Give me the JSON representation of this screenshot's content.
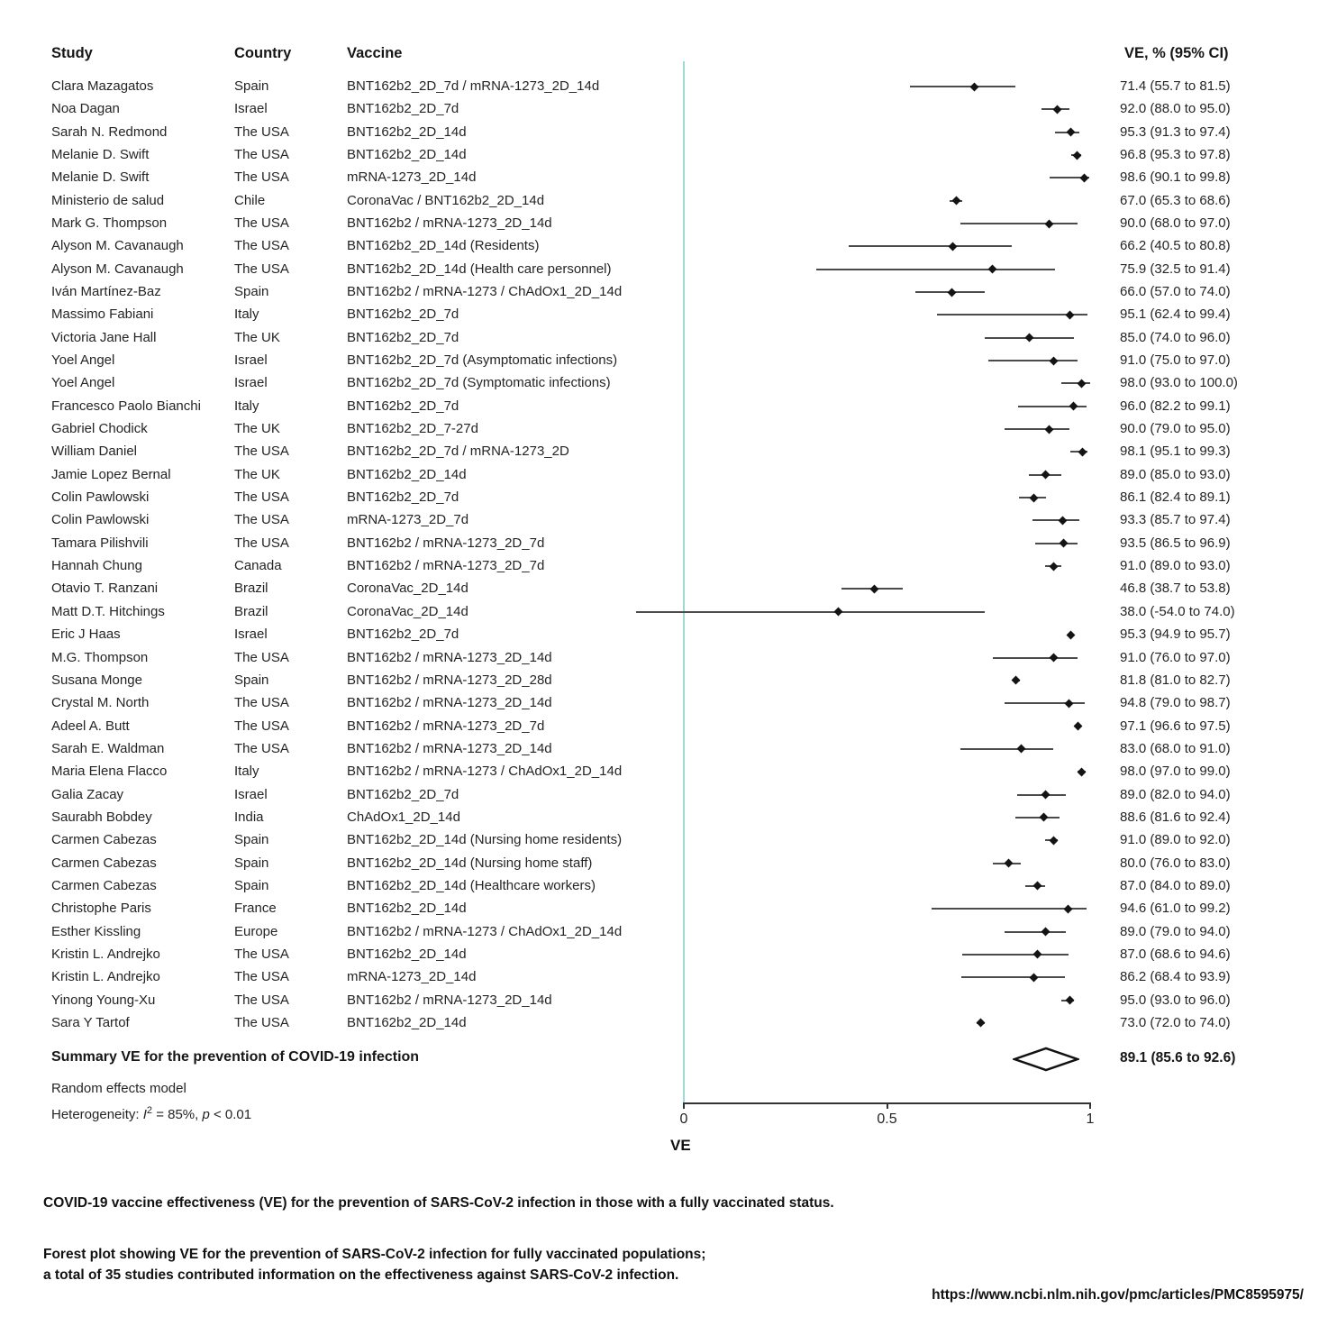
{
  "chart_data": {
    "type": "forest",
    "columns": {
      "study": "Study",
      "country": "Country",
      "vaccine": "Vaccine",
      "ve": "VE, % (95% CI)"
    },
    "axis": {
      "label": "VE",
      "min": 0,
      "max": 1,
      "ticks": [
        {
          "label": "0",
          "value": 0
        },
        {
          "label": "0.5",
          "value": 0.5
        },
        {
          "label": "1",
          "value": 1
        }
      ]
    },
    "studies": [
      {
        "study": "Clara Mazagatos",
        "country": "Spain",
        "vaccine": "BNT162b2_2D_7d / mRNA-1273_2D_14d",
        "ve": 71.4,
        "lo": 55.7,
        "hi": 81.5,
        "ve_label": "71.4 (55.7 to 81.5)"
      },
      {
        "study": "Noa Dagan",
        "country": "Israel",
        "vaccine": "BNT162b2_2D_7d",
        "ve": 92.0,
        "lo": 88.0,
        "hi": 95.0,
        "ve_label": "92.0 (88.0 to 95.0)"
      },
      {
        "study": "Sarah N. Redmond",
        "country": "The USA",
        "vaccine": "BNT162b2_2D_14d",
        "ve": 95.3,
        "lo": 91.3,
        "hi": 97.4,
        "ve_label": "95.3 (91.3 to 97.4)"
      },
      {
        "study": "Melanie D. Swift",
        "country": "The USA",
        "vaccine": "BNT162b2_2D_14d",
        "ve": 96.8,
        "lo": 95.3,
        "hi": 97.8,
        "ve_label": "96.8 (95.3 to 97.8)"
      },
      {
        "study": "Melanie D. Swift",
        "country": "The USA",
        "vaccine": "mRNA-1273_2D_14d",
        "ve": 98.6,
        "lo": 90.1,
        "hi": 99.8,
        "ve_label": "98.6 (90.1 to 99.8)"
      },
      {
        "study": "Ministerio de salud",
        "country": "Chile",
        "vaccine": "CoronaVac / BNT162b2_2D_14d",
        "ve": 67.0,
        "lo": 65.3,
        "hi": 68.6,
        "ve_label": "67.0 (65.3 to 68.6)"
      },
      {
        "study": "Mark G. Thompson",
        "country": "The USA",
        "vaccine": "BNT162b2 / mRNA-1273_2D_14d",
        "ve": 90.0,
        "lo": 68.0,
        "hi": 97.0,
        "ve_label": "90.0 (68.0 to 97.0)"
      },
      {
        "study": "Alyson M. Cavanaugh",
        "country": "The USA",
        "vaccine": "BNT162b2_2D_14d (Residents)",
        "ve": 66.2,
        "lo": 40.5,
        "hi": 80.8,
        "ve_label": "66.2 (40.5 to 80.8)"
      },
      {
        "study": "Alyson M. Cavanaugh",
        "country": "The USA",
        "vaccine": "BNT162b2_2D_14d (Health care personnel)",
        "ve": 75.9,
        "lo": 32.5,
        "hi": 91.4,
        "ve_label": "75.9 (32.5 to 91.4)"
      },
      {
        "study": "Iván Martínez-Baz",
        "country": "Spain",
        "vaccine": "BNT162b2 / mRNA-1273 / ChAdOx1_2D_14d",
        "ve": 66.0,
        "lo": 57.0,
        "hi": 74.0,
        "ve_label": "66.0 (57.0 to 74.0)"
      },
      {
        "study": "Massimo Fabiani",
        "country": "Italy",
        "vaccine": "BNT162b2_2D_7d",
        "ve": 95.1,
        "lo": 62.4,
        "hi": 99.4,
        "ve_label": "95.1 (62.4 to 99.4)"
      },
      {
        "study": "Victoria Jane Hall",
        "country": "The UK",
        "vaccine": "BNT162b2_2D_7d",
        "ve": 85.0,
        "lo": 74.0,
        "hi": 96.0,
        "ve_label": "85.0 (74.0 to 96.0)"
      },
      {
        "study": "Yoel Angel",
        "country": "Israel",
        "vaccine": "BNT162b2_2D_7d (Asymptomatic infections)",
        "ve": 91.0,
        "lo": 75.0,
        "hi": 97.0,
        "ve_label": "91.0 (75.0 to 97.0)"
      },
      {
        "study": "Yoel Angel",
        "country": "Israel",
        "vaccine": "BNT162b2_2D_7d (Symptomatic infections)",
        "ve": 98.0,
        "lo": 93.0,
        "hi": 100.0,
        "ve_label": "98.0 (93.0 to 100.0)"
      },
      {
        "study": "Francesco Paolo Bianchi",
        "country": "Italy",
        "vaccine": "BNT162b2_2D_7d",
        "ve": 96.0,
        "lo": 82.2,
        "hi": 99.1,
        "ve_label": "96.0 (82.2 to 99.1)"
      },
      {
        "study": "Gabriel Chodick",
        "country": "The UK",
        "vaccine": "BNT162b2_2D_7-27d",
        "ve": 90.0,
        "lo": 79.0,
        "hi": 95.0,
        "ve_label": "90.0 (79.0 to 95.0)"
      },
      {
        "study": "William Daniel",
        "country": "The USA",
        "vaccine": "BNT162b2_2D_7d / mRNA-1273_2D",
        "ve": 98.1,
        "lo": 95.1,
        "hi": 99.3,
        "ve_label": "98.1 (95.1 to 99.3)"
      },
      {
        "study": "Jamie Lopez Bernal",
        "country": "The UK",
        "vaccine": "BNT162b2_2D_14d",
        "ve": 89.0,
        "lo": 85.0,
        "hi": 93.0,
        "ve_label": "89.0 (85.0 to 93.0)"
      },
      {
        "study": "Colin Pawlowski",
        "country": "The USA",
        "vaccine": "BNT162b2_2D_7d",
        "ve": 86.1,
        "lo": 82.4,
        "hi": 89.1,
        "ve_label": "86.1 (82.4 to 89.1)"
      },
      {
        "study": "Colin Pawlowski",
        "country": "The USA",
        "vaccine": "mRNA-1273_2D_7d",
        "ve": 93.3,
        "lo": 85.7,
        "hi": 97.4,
        "ve_label": "93.3 (85.7 to 97.4)"
      },
      {
        "study": "Tamara Pilishvili",
        "country": "The USA",
        "vaccine": "BNT162b2 / mRNA-1273_2D_7d",
        "ve": 93.5,
        "lo": 86.5,
        "hi": 96.9,
        "ve_label": "93.5 (86.5 to 96.9)"
      },
      {
        "study": "Hannah Chung",
        "country": "Canada",
        "vaccine": "BNT162b2 / mRNA-1273_2D_7d",
        "ve": 91.0,
        "lo": 89.0,
        "hi": 93.0,
        "ve_label": "91.0 (89.0 to 93.0)"
      },
      {
        "study": "Otavio T. Ranzani",
        "country": "Brazil",
        "vaccine": "CoronaVac_2D_14d",
        "ve": 46.8,
        "lo": 38.7,
        "hi": 53.8,
        "ve_label": "46.8 (38.7 to 53.8)"
      },
      {
        "study": "Matt D.T. Hitchings",
        "country": "Brazil",
        "vaccine": "CoronaVac_2D_14d",
        "ve": 38.0,
        "lo": -54.0,
        "hi": 74.0,
        "ve_label": "38.0 (-54.0 to 74.0)"
      },
      {
        "study": "Eric J Haas",
        "country": "Israel",
        "vaccine": "BNT162b2_2D_7d",
        "ve": 95.3,
        "lo": 94.9,
        "hi": 95.7,
        "ve_label": "95.3 (94.9 to 95.7)"
      },
      {
        "study": "M.G. Thompson",
        "country": "The USA",
        "vaccine": "BNT162b2 / mRNA-1273_2D_14d",
        "ve": 91.0,
        "lo": 76.0,
        "hi": 97.0,
        "ve_label": "91.0 (76.0 to 97.0)"
      },
      {
        "study": "Susana Monge",
        "country": "Spain",
        "vaccine": "BNT162b2 / mRNA-1273_2D_28d",
        "ve": 81.8,
        "lo": 81.0,
        "hi": 82.7,
        "ve_label": "81.8 (81.0 to 82.7)"
      },
      {
        "study": "Crystal M. North",
        "country": "The USA",
        "vaccine": "BNT162b2 / mRNA-1273_2D_14d",
        "ve": 94.8,
        "lo": 79.0,
        "hi": 98.7,
        "ve_label": "94.8 (79.0 to 98.7)"
      },
      {
        "study": "Adeel A. Butt",
        "country": "The USA",
        "vaccine": "BNT162b2 / mRNA-1273_2D_7d",
        "ve": 97.1,
        "lo": 96.6,
        "hi": 97.5,
        "ve_label": "97.1 (96.6 to 97.5)"
      },
      {
        "study": "Sarah E. Waldman",
        "country": "The USA",
        "vaccine": "BNT162b2 / mRNA-1273_2D_14d",
        "ve": 83.0,
        "lo": 68.0,
        "hi": 91.0,
        "ve_label": "83.0 (68.0 to 91.0)"
      },
      {
        "study": "Maria Elena Flacco",
        "country": "Italy",
        "vaccine": "BNT162b2 / mRNA-1273 / ChAdOx1_2D_14d",
        "ve": 98.0,
        "lo": 97.0,
        "hi": 99.0,
        "ve_label": "98.0 (97.0 to 99.0)"
      },
      {
        "study": "Galia Zacay",
        "country": "Israel",
        "vaccine": "BNT162b2_2D_7d",
        "ve": 89.0,
        "lo": 82.0,
        "hi": 94.0,
        "ve_label": "89.0 (82.0 to 94.0)"
      },
      {
        "study": "Saurabh Bobdey",
        "country": "India",
        "vaccine": "ChAdOx1_2D_14d",
        "ve": 88.6,
        "lo": 81.6,
        "hi": 92.4,
        "ve_label": "88.6 (81.6 to 92.4)"
      },
      {
        "study": "Carmen Cabezas",
        "country": "Spain",
        "vaccine": "BNT162b2_2D_14d (Nursing home residents)",
        "ve": 91.0,
        "lo": 89.0,
        "hi": 92.0,
        "ve_label": "91.0 (89.0 to 92.0)"
      },
      {
        "study": "Carmen Cabezas",
        "country": "Spain",
        "vaccine": "BNT162b2_2D_14d (Nursing home staff)",
        "ve": 80.0,
        "lo": 76.0,
        "hi": 83.0,
        "ve_label": "80.0 (76.0 to 83.0)"
      },
      {
        "study": "Carmen Cabezas",
        "country": "Spain",
        "vaccine": "BNT162b2_2D_14d (Healthcare workers)",
        "ve": 87.0,
        "lo": 84.0,
        "hi": 89.0,
        "ve_label": "87.0 (84.0 to 89.0)"
      },
      {
        "study": "Christophe Paris",
        "country": "France",
        "vaccine": "BNT162b2_2D_14d",
        "ve": 94.6,
        "lo": 61.0,
        "hi": 99.2,
        "ve_label": "94.6 (61.0 to 99.2)"
      },
      {
        "study": "Esther Kissling",
        "country": "Europe",
        "vaccine": "BNT162b2 / mRNA-1273 / ChAdOx1_2D_14d",
        "ve": 89.0,
        "lo": 79.0,
        "hi": 94.0,
        "ve_label": "89.0 (79.0 to 94.0)"
      },
      {
        "study": "Kristin L. Andrejko",
        "country": "The USA",
        "vaccine": "BNT162b2_2D_14d",
        "ve": 87.0,
        "lo": 68.6,
        "hi": 94.6,
        "ve_label": "87.0 (68.6 to 94.6)"
      },
      {
        "study": "Kristin L. Andrejko",
        "country": "The USA",
        "vaccine": "mRNA-1273_2D_14d",
        "ve": 86.2,
        "lo": 68.4,
        "hi": 93.9,
        "ve_label": "86.2 (68.4 to 93.9)"
      },
      {
        "study": "Yinong Young-Xu",
        "country": "The USA",
        "vaccine": "BNT162b2 / mRNA-1273_2D_14d",
        "ve": 95.0,
        "lo": 93.0,
        "hi": 96.0,
        "ve_label": "95.0 (93.0 to 96.0)"
      },
      {
        "study": "Sara Y Tartof",
        "country": "The USA",
        "vaccine": "BNT162b2_2D_14d",
        "ve": 73.0,
        "lo": 72.0,
        "hi": 74.0,
        "ve_label": "73.0 (72.0 to 74.0)"
      }
    ],
    "summary": {
      "label": "Summary VE for the prevention of COVID-19 infection",
      "ve": 89.1,
      "lo": 85.6,
      "hi": 92.6,
      "ve_label": "89.1 (85.6 to 92.6)"
    },
    "model_label": "Random effects model",
    "heterogeneity": {
      "prefix": "Heterogeneity: ",
      "stat": "I",
      "sup": "2",
      "mid": " = 85%, ",
      "p": "p",
      "suffix": " < 0.01"
    }
  },
  "captions": {
    "title": "COVID-19 vaccine effectiveness (VE) for the prevention of SARS-CoV-2 infection in those with a fully vaccinated status.",
    "line1": "Forest plot showing VE for the prevention of SARS-CoV-2 infection for fully vaccinated populations;",
    "line2": "a total of 35 studies contributed information on the effectiveness against SARS-CoV-2 infection."
  },
  "source_url": "https://www.ncbi.nlm.nih.gov/pmc/articles/PMC8595975/",
  "colors": {
    "zero_line": "#9fd8d4",
    "ci_line": "#4b4b4b",
    "marker": "#141414",
    "axis": "#333333",
    "summary_diamond_stroke": "#111111",
    "summary_diamond_fill": "#ffffff"
  }
}
